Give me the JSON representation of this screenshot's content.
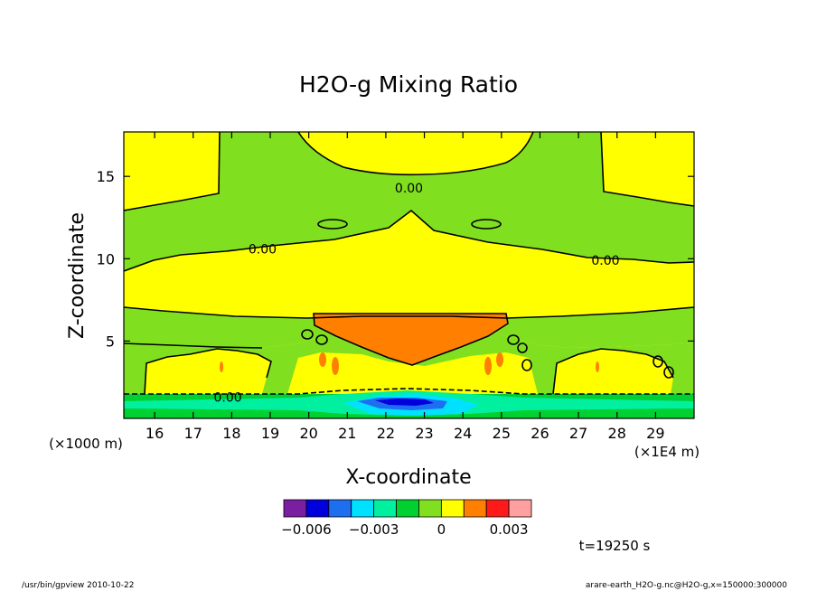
{
  "chart_data": {
    "type": "contour",
    "title": "H2O-g Mixing Ratio",
    "xlabel": "X-coordinate",
    "ylabel": "Z-coordinate",
    "x_unit_label": "(×1E4 m)",
    "y_unit_label": "(×1000 m)",
    "x_ticks": [
      16,
      17,
      18,
      19,
      20,
      21,
      22,
      23,
      24,
      25,
      26,
      27,
      28,
      29
    ],
    "y_ticks": [
      5,
      10,
      15
    ],
    "xlim": [
      15.2,
      30.0
    ],
    "ylim": [
      0.3,
      17.7
    ],
    "contour_labels": [
      {
        "text": "0.00",
        "x": 22.6,
        "y": 14.3
      },
      {
        "text": "0.00",
        "x": 18.8,
        "y": 10.6
      },
      {
        "text": "0.00",
        "x": 27.7,
        "y": 9.9
      },
      {
        "text": "0.00",
        "x": 17.9,
        "y": 1.6
      }
    ],
    "colorbar": {
      "colors": [
        "#7b1fa2",
        "#0000dd",
        "#1e6ef0",
        "#00e0ff",
        "#00f0a0",
        "#00d030",
        "#80e020",
        "#ffff00",
        "#ff8000",
        "#ff1a1a",
        "#ffa0a0"
      ],
      "tick_labels": [
        "−0.006",
        "−0.003",
        "0",
        "0.003"
      ],
      "tick_values": [
        -0.006,
        -0.003,
        0,
        0.003
      ]
    },
    "time_label": "t=19250 s"
  },
  "footer": {
    "left": "/usr/bin/gpview   2010-10-22",
    "right": "arare-earth_H2O-g.nc@H2O-g,x=150000:300000"
  }
}
